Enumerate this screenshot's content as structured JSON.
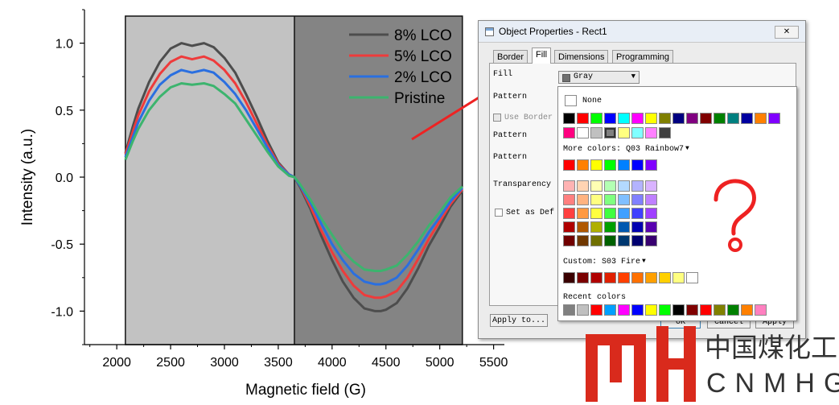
{
  "chart_data": {
    "type": "line",
    "xlabel": "Magnetic field (G)",
    "ylabel": "Intensity (a.u.)",
    "xlim": [
      1700,
      5600
    ],
    "ylim": [
      -1.25,
      1.25
    ],
    "xticks": [
      "2000",
      "2500",
      "3000",
      "3500",
      "4000",
      "4500",
      "5000",
      "5500"
    ],
    "yticks": [
      "1.0",
      "0.5",
      "0.0",
      "-0.5",
      "-1.0"
    ],
    "shaded_regions": [
      {
        "from": 2080,
        "to": 3650,
        "color": "#c2c2c2"
      },
      {
        "from": 3650,
        "to": 5210,
        "color": "#848484"
      }
    ],
    "region_divider_x": 3650,
    "x": [
      2080,
      2150,
      2200,
      2300,
      2400,
      2500,
      2600,
      2700,
      2810,
      2900,
      3000,
      3100,
      3200,
      3300,
      3400,
      3500,
      3600,
      3650,
      3700,
      3800,
      3900,
      4000,
      4100,
      4200,
      4300,
      4400,
      4450,
      4500,
      4600,
      4700,
      4800,
      4900,
      5000,
      5100,
      5210
    ],
    "series": [
      {
        "name": "8% LCO",
        "color": "#4d4d4d",
        "values": [
          0.18,
          0.38,
          0.51,
          0.71,
          0.86,
          0.96,
          1.0,
          0.98,
          1.0,
          0.97,
          0.89,
          0.78,
          0.62,
          0.45,
          0.27,
          0.11,
          0.02,
          0.0,
          -0.07,
          -0.24,
          -0.44,
          -0.62,
          -0.78,
          -0.9,
          -0.98,
          -1.0,
          -1.0,
          -0.99,
          -0.94,
          -0.83,
          -0.68,
          -0.51,
          -0.37,
          -0.22,
          -0.1
        ]
      },
      {
        "name": "5% LCO",
        "color": "#ee3b3b",
        "values": [
          0.17,
          0.34,
          0.46,
          0.64,
          0.77,
          0.86,
          0.9,
          0.88,
          0.9,
          0.87,
          0.8,
          0.7,
          0.56,
          0.4,
          0.24,
          0.1,
          0.02,
          0.0,
          -0.06,
          -0.22,
          -0.4,
          -0.56,
          -0.7,
          -0.81,
          -0.88,
          -0.9,
          -0.9,
          -0.89,
          -0.85,
          -0.75,
          -0.61,
          -0.46,
          -0.33,
          -0.2,
          -0.09
        ]
      },
      {
        "name": "2% LCO",
        "color": "#2a6fe0",
        "values": [
          0.15,
          0.3,
          0.41,
          0.57,
          0.69,
          0.76,
          0.8,
          0.78,
          0.8,
          0.78,
          0.71,
          0.62,
          0.5,
          0.36,
          0.22,
          0.09,
          0.02,
          0.0,
          -0.06,
          -0.19,
          -0.35,
          -0.5,
          -0.62,
          -0.72,
          -0.78,
          -0.8,
          -0.8,
          -0.79,
          -0.75,
          -0.66,
          -0.54,
          -0.41,
          -0.3,
          -0.18,
          -0.08
        ]
      },
      {
        "name": "Pristine",
        "color": "#3cb46e",
        "values": [
          0.13,
          0.27,
          0.36,
          0.5,
          0.6,
          0.67,
          0.7,
          0.69,
          0.7,
          0.68,
          0.62,
          0.55,
          0.43,
          0.31,
          0.19,
          0.08,
          0.01,
          0.0,
          -0.05,
          -0.17,
          -0.31,
          -0.43,
          -0.55,
          -0.63,
          -0.69,
          -0.7,
          -0.7,
          -0.69,
          -0.66,
          -0.58,
          -0.48,
          -0.36,
          -0.26,
          -0.15,
          -0.07
        ]
      }
    ],
    "legend_position": "top-right"
  },
  "dialog": {
    "title": "Object Properties - Rect1",
    "close_label": "✕",
    "tabs": [
      "Border",
      "Fill",
      "Dimensions",
      "Programming"
    ],
    "active_tab": "Fill",
    "fill_label": "Fill",
    "pattern_label1": "Pattern",
    "use_border_label": "Use Border",
    "pattern_label2": "Pattern",
    "pattern_label3": "Pattern",
    "transparency_label": "Transparency",
    "set_default_label": "Set as Def",
    "apply_to_label": "Apply to...",
    "ok_label": "OK",
    "cancel_label": "Cancel",
    "apply_label": "Apply"
  },
  "fill_combo": {
    "value": "Gray",
    "swatch": "#707070"
  },
  "palette": {
    "none_label": "None",
    "basic_row1": [
      "#000000",
      "#ff0000",
      "#00ff00",
      "#0000ff",
      "#00ffff",
      "#ff00ff",
      "#ffff00",
      "#808000",
      "#000080",
      "#800080",
      "#800000",
      "#008000",
      "#008080",
      "#0000a0",
      "#ff8000",
      "#8000ff"
    ],
    "basic_row2": [
      "#ff0080",
      "#ffffff",
      "#c0c0c0",
      "#808080",
      "#ffff80",
      "#80ffff",
      "#ff80ff",
      "#404040"
    ],
    "selected_basic_index": 3,
    "more_colors_label": "More colors: Q03 Rainbow7",
    "rainbow7": [
      "#ff0000",
      "#ff8000",
      "#ffff00",
      "#00ff00",
      "#0080ff",
      "#0000ff",
      "#8000ff"
    ],
    "rainbow_grid": [
      [
        "#ffb3b3",
        "#ffd4b3",
        "#ffffb3",
        "#b3ffb3",
        "#b3d9ff",
        "#b3b3ff",
        "#d9b3ff"
      ],
      [
        "#ff8080",
        "#ffb380",
        "#ffff80",
        "#80ff80",
        "#80bfff",
        "#8080ff",
        "#bf80ff"
      ],
      [
        "#ff4040",
        "#ff9940",
        "#ffff40",
        "#40ff40",
        "#40a0ff",
        "#4040ff",
        "#a040ff"
      ],
      [
        "#b00000",
        "#b05800",
        "#b0b000",
        "#00a000",
        "#0058b0",
        "#0000b0",
        "#5800b0"
      ],
      [
        "#700000",
        "#703800",
        "#707000",
        "#006000",
        "#003870",
        "#000070",
        "#380070"
      ]
    ],
    "custom_label": "Custom: S03 Fire",
    "fire": [
      "#3a0000",
      "#7a0000",
      "#b00000",
      "#e02000",
      "#ff4000",
      "#ff7000",
      "#ffa000",
      "#ffd000",
      "#ffff80",
      "#ffffff"
    ],
    "recent_label": "Recent colors",
    "recent": [
      "#808080",
      "#c0c0c0",
      "#ff0000",
      "#00a0ff",
      "#ff00ff",
      "#0000ff",
      "#ffff00",
      "#00ff00",
      "#000000",
      "#800000",
      "#ff0000",
      "#808000",
      "#008000",
      "#ff8000",
      "#ff80c0"
    ]
  },
  "question_mark": "?",
  "logo": {
    "chinese": "中国煤化工",
    "latin": "CNMHG",
    "color": "#d92a1c",
    "text_color": "#333333"
  },
  "annotation_arrow_color": "#ee2222"
}
